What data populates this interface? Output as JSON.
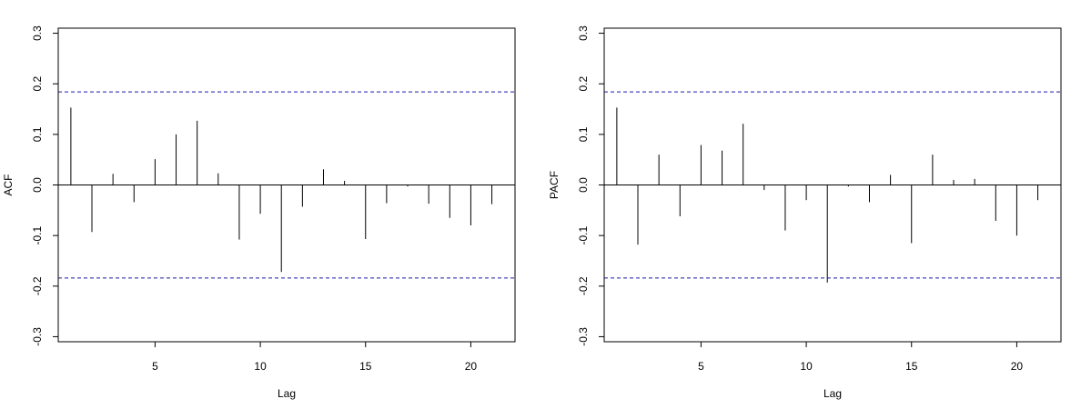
{
  "chart_data": [
    {
      "type": "bar",
      "title": "",
      "xlabel": "Lag",
      "ylabel": "ACF",
      "xlim": [
        0.4,
        22.1
      ],
      "ylim": [
        -0.31,
        0.31
      ],
      "xticks": [
        5,
        10,
        15,
        20
      ],
      "xtick_labels": [
        "5",
        "10",
        "15",
        "20"
      ],
      "yticks": [
        -0.3,
        -0.2,
        -0.1,
        0.0,
        0.1,
        0.2,
        0.3
      ],
      "ytick_labels": [
        "-0.3",
        "-0.2",
        "-0.1",
        "0.0",
        "0.1",
        "0.2",
        "0.3"
      ],
      "confidence_bound": 0.184,
      "grid": false,
      "lags": [
        1,
        2,
        3,
        4,
        5,
        6,
        7,
        8,
        9,
        10,
        11,
        12,
        13,
        14,
        15,
        16,
        17,
        18,
        19,
        20,
        21
      ],
      "values": [
        0.153,
        -0.093,
        0.022,
        -0.034,
        0.051,
        0.1,
        0.127,
        0.023,
        -0.108,
        -0.057,
        -0.172,
        -0.043,
        0.031,
        0.008,
        -0.107,
        -0.036,
        -0.003,
        -0.037,
        -0.065,
        -0.08,
        -0.038
      ]
    },
    {
      "type": "bar",
      "title": "",
      "xlabel": "Lag",
      "ylabel": "PACF",
      "xlim": [
        0.4,
        22.1
      ],
      "ylim": [
        -0.31,
        0.31
      ],
      "xticks": [
        5,
        10,
        15,
        20
      ],
      "xtick_labels": [
        "5",
        "10",
        "15",
        "20"
      ],
      "yticks": [
        -0.3,
        -0.2,
        -0.1,
        0.0,
        0.1,
        0.2,
        0.3
      ],
      "ytick_labels": [
        "-0.3",
        "-0.2",
        "-0.1",
        "0.0",
        "0.1",
        "0.2",
        "0.3"
      ],
      "confidence_bound": 0.184,
      "grid": false,
      "lags": [
        1,
        2,
        3,
        4,
        5,
        6,
        7,
        8,
        9,
        10,
        11,
        12,
        13,
        14,
        15,
        16,
        17,
        18,
        19,
        20,
        21
      ],
      "values": [
        0.153,
        -0.118,
        0.06,
        -0.062,
        0.079,
        0.068,
        0.121,
        -0.01,
        -0.09,
        -0.03,
        -0.193,
        -0.003,
        -0.034,
        0.02,
        -0.115,
        0.06,
        0.01,
        0.012,
        -0.071,
        -0.1,
        -0.03
      ]
    }
  ]
}
